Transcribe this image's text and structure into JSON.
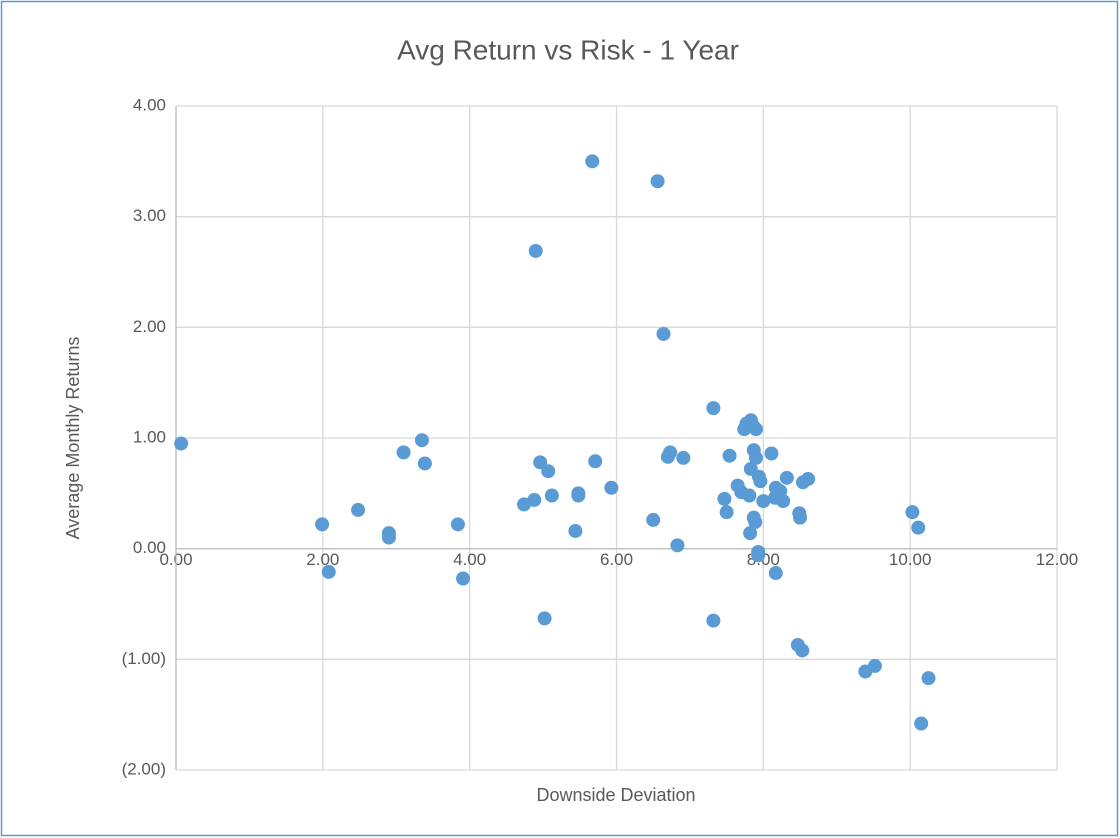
{
  "chart_data": {
    "type": "scatter",
    "title": "Avg Return vs Risk - 1 Year",
    "x_label": "Downside Deviation",
    "y_label": "Average Monthly Returns",
    "color": "#5b9bd5",
    "grid": true,
    "xlim": [
      0,
      12
    ],
    "ylim": [
      -2,
      4
    ],
    "xticks": [
      {
        "value": 0,
        "label": "0.00"
      },
      {
        "value": 2,
        "label": "2.00"
      },
      {
        "value": 4,
        "label": "4.00"
      },
      {
        "value": 6,
        "label": "6.00"
      },
      {
        "value": 8,
        "label": "8.00"
      },
      {
        "value": 10,
        "label": "10.00"
      },
      {
        "value": 12,
        "label": "12.00"
      }
    ],
    "yticks": [
      {
        "value": -2,
        "label": "(2.00)"
      },
      {
        "value": -1,
        "label": "(1.00)"
      },
      {
        "value": 0,
        "label": "0.00"
      },
      {
        "value": 1,
        "label": "1.00"
      },
      {
        "value": 2,
        "label": "2.00"
      },
      {
        "value": 3,
        "label": "3.00"
      },
      {
        "value": 4,
        "label": "4.00"
      }
    ],
    "x": [
      0.07,
      1.99,
      2.08,
      2.48,
      2.9,
      2.9,
      3.1,
      3.35,
      3.39,
      3.84,
      3.91,
      4.74,
      4.88,
      4.9,
      4.96,
      5.02,
      5.07,
      5.12,
      5.48,
      5.48,
      5.44,
      5.67,
      5.71,
      5.93,
      6.5,
      6.56,
      6.64,
      6.7,
      6.73,
      6.83,
      6.91,
      7.32,
      7.32,
      7.47,
      7.5,
      7.54,
      7.65,
      7.7,
      7.74,
      7.77,
      7.81,
      7.82,
      7.83,
      7.83,
      7.86,
      7.87,
      7.87,
      7.89,
      7.9,
      7.9,
      7.93,
      7.93,
      7.94,
      7.96,
      8.0,
      8.11,
      8.16,
      8.17,
      8.17,
      8.23,
      8.27,
      8.32,
      8.47,
      8.49,
      8.5,
      8.53,
      8.54,
      8.61,
      9.39,
      9.52,
      10.03,
      10.11,
      10.15,
      10.25
    ],
    "values": [
      0.95,
      0.22,
      -0.21,
      0.35,
      0.14,
      0.1,
      0.87,
      0.98,
      0.77,
      0.22,
      -0.27,
      0.4,
      0.44,
      2.69,
      0.78,
      -0.63,
      0.7,
      0.48,
      0.48,
      0.5,
      0.16,
      3.5,
      0.79,
      0.55,
      0.26,
      3.32,
      1.94,
      0.83,
      0.87,
      0.03,
      0.82,
      1.27,
      -0.65,
      0.45,
      0.33,
      0.84,
      0.57,
      0.51,
      1.08,
      1.13,
      0.48,
      0.14,
      0.72,
      1.16,
      1.11,
      0.89,
      0.28,
      0.24,
      1.08,
      0.82,
      -0.06,
      -0.03,
      0.65,
      0.61,
      0.43,
      0.86,
      0.46,
      -0.22,
      0.55,
      0.52,
      0.43,
      0.64,
      -0.87,
      0.32,
      0.28,
      -0.92,
      0.6,
      0.63,
      -1.11,
      -1.06,
      0.33,
      0.19,
      -1.58,
      -1.17
    ]
  }
}
